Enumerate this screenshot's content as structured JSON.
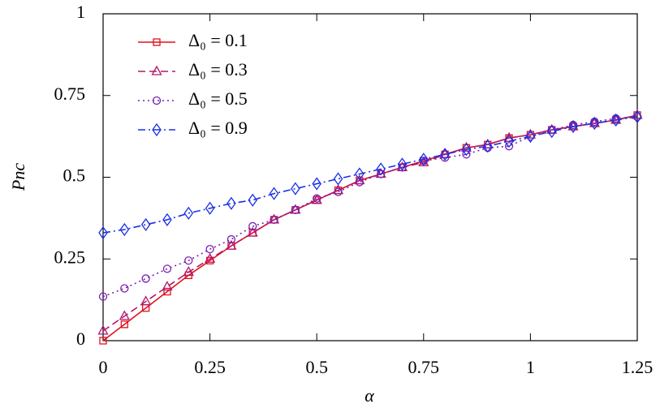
{
  "chart_data": {
    "type": "line",
    "xlabel": "α",
    "ylabel": "Pnc",
    "x": [
      0,
      0.05,
      0.1,
      0.15,
      0.2,
      0.25,
      0.3,
      0.35,
      0.4,
      0.45,
      0.5,
      0.55,
      0.6,
      0.65,
      0.7,
      0.75,
      0.8,
      0.85,
      0.9,
      0.95,
      1,
      1.05,
      1.1,
      1.15,
      1.2,
      1.25
    ],
    "series": [
      {
        "name": "Δ₀ = 0.1",
        "color": "#e3101c",
        "marker": "square",
        "line_style": "solid",
        "values": [
          0,
          0.05,
          0.1,
          0.15,
          0.2,
          0.245,
          0.29,
          0.33,
          0.37,
          0.4,
          0.43,
          0.46,
          0.49,
          0.51,
          0.53,
          0.55,
          0.57,
          0.59,
          0.6,
          0.62,
          0.63,
          0.645,
          0.655,
          0.665,
          0.675,
          0.69
        ]
      },
      {
        "name": "Δ₀ = 0.3",
        "color": "#b3186a",
        "marker": "triangle",
        "line_style": "dashed",
        "values": [
          0.03,
          0.075,
          0.12,
          0.165,
          0.21,
          0.25,
          0.29,
          0.33,
          0.37,
          0.4,
          0.43,
          0.46,
          0.49,
          0.51,
          0.53,
          0.545,
          0.57,
          0.59,
          0.6,
          0.62,
          0.63,
          0.645,
          0.655,
          0.665,
          0.675,
          0.69
        ]
      },
      {
        "name": "Δ₀ = 0.5",
        "color": "#7a22b4",
        "marker": "circle",
        "line_style": "dotted",
        "values": [
          0.135,
          0.16,
          0.19,
          0.22,
          0.245,
          0.28,
          0.31,
          0.35,
          0.37,
          0.4,
          0.435,
          0.455,
          0.485,
          0.51,
          0.53,
          0.55,
          0.56,
          0.57,
          0.59,
          0.595,
          0.625,
          0.645,
          0.66,
          0.67,
          0.68,
          0.685
        ]
      },
      {
        "name": "Δ₀ = 0.9",
        "color": "#1a30e6",
        "marker": "diamond",
        "line_style": "dashdot",
        "values": [
          0.33,
          0.34,
          0.355,
          0.37,
          0.39,
          0.405,
          0.42,
          0.43,
          0.45,
          0.465,
          0.48,
          0.495,
          0.51,
          0.525,
          0.54,
          0.555,
          0.57,
          0.585,
          0.595,
          0.61,
          0.625,
          0.64,
          0.655,
          0.665,
          0.675,
          0.685
        ]
      }
    ],
    "xlim": [
      0,
      1.25
    ],
    "xticks": [
      0,
      0.25,
      0.5,
      0.75,
      1,
      1.25
    ],
    "ylim": [
      0,
      1
    ],
    "yticks": [
      0,
      0.25,
      0.5,
      0.75,
      1
    ],
    "legend": "upper left"
  }
}
